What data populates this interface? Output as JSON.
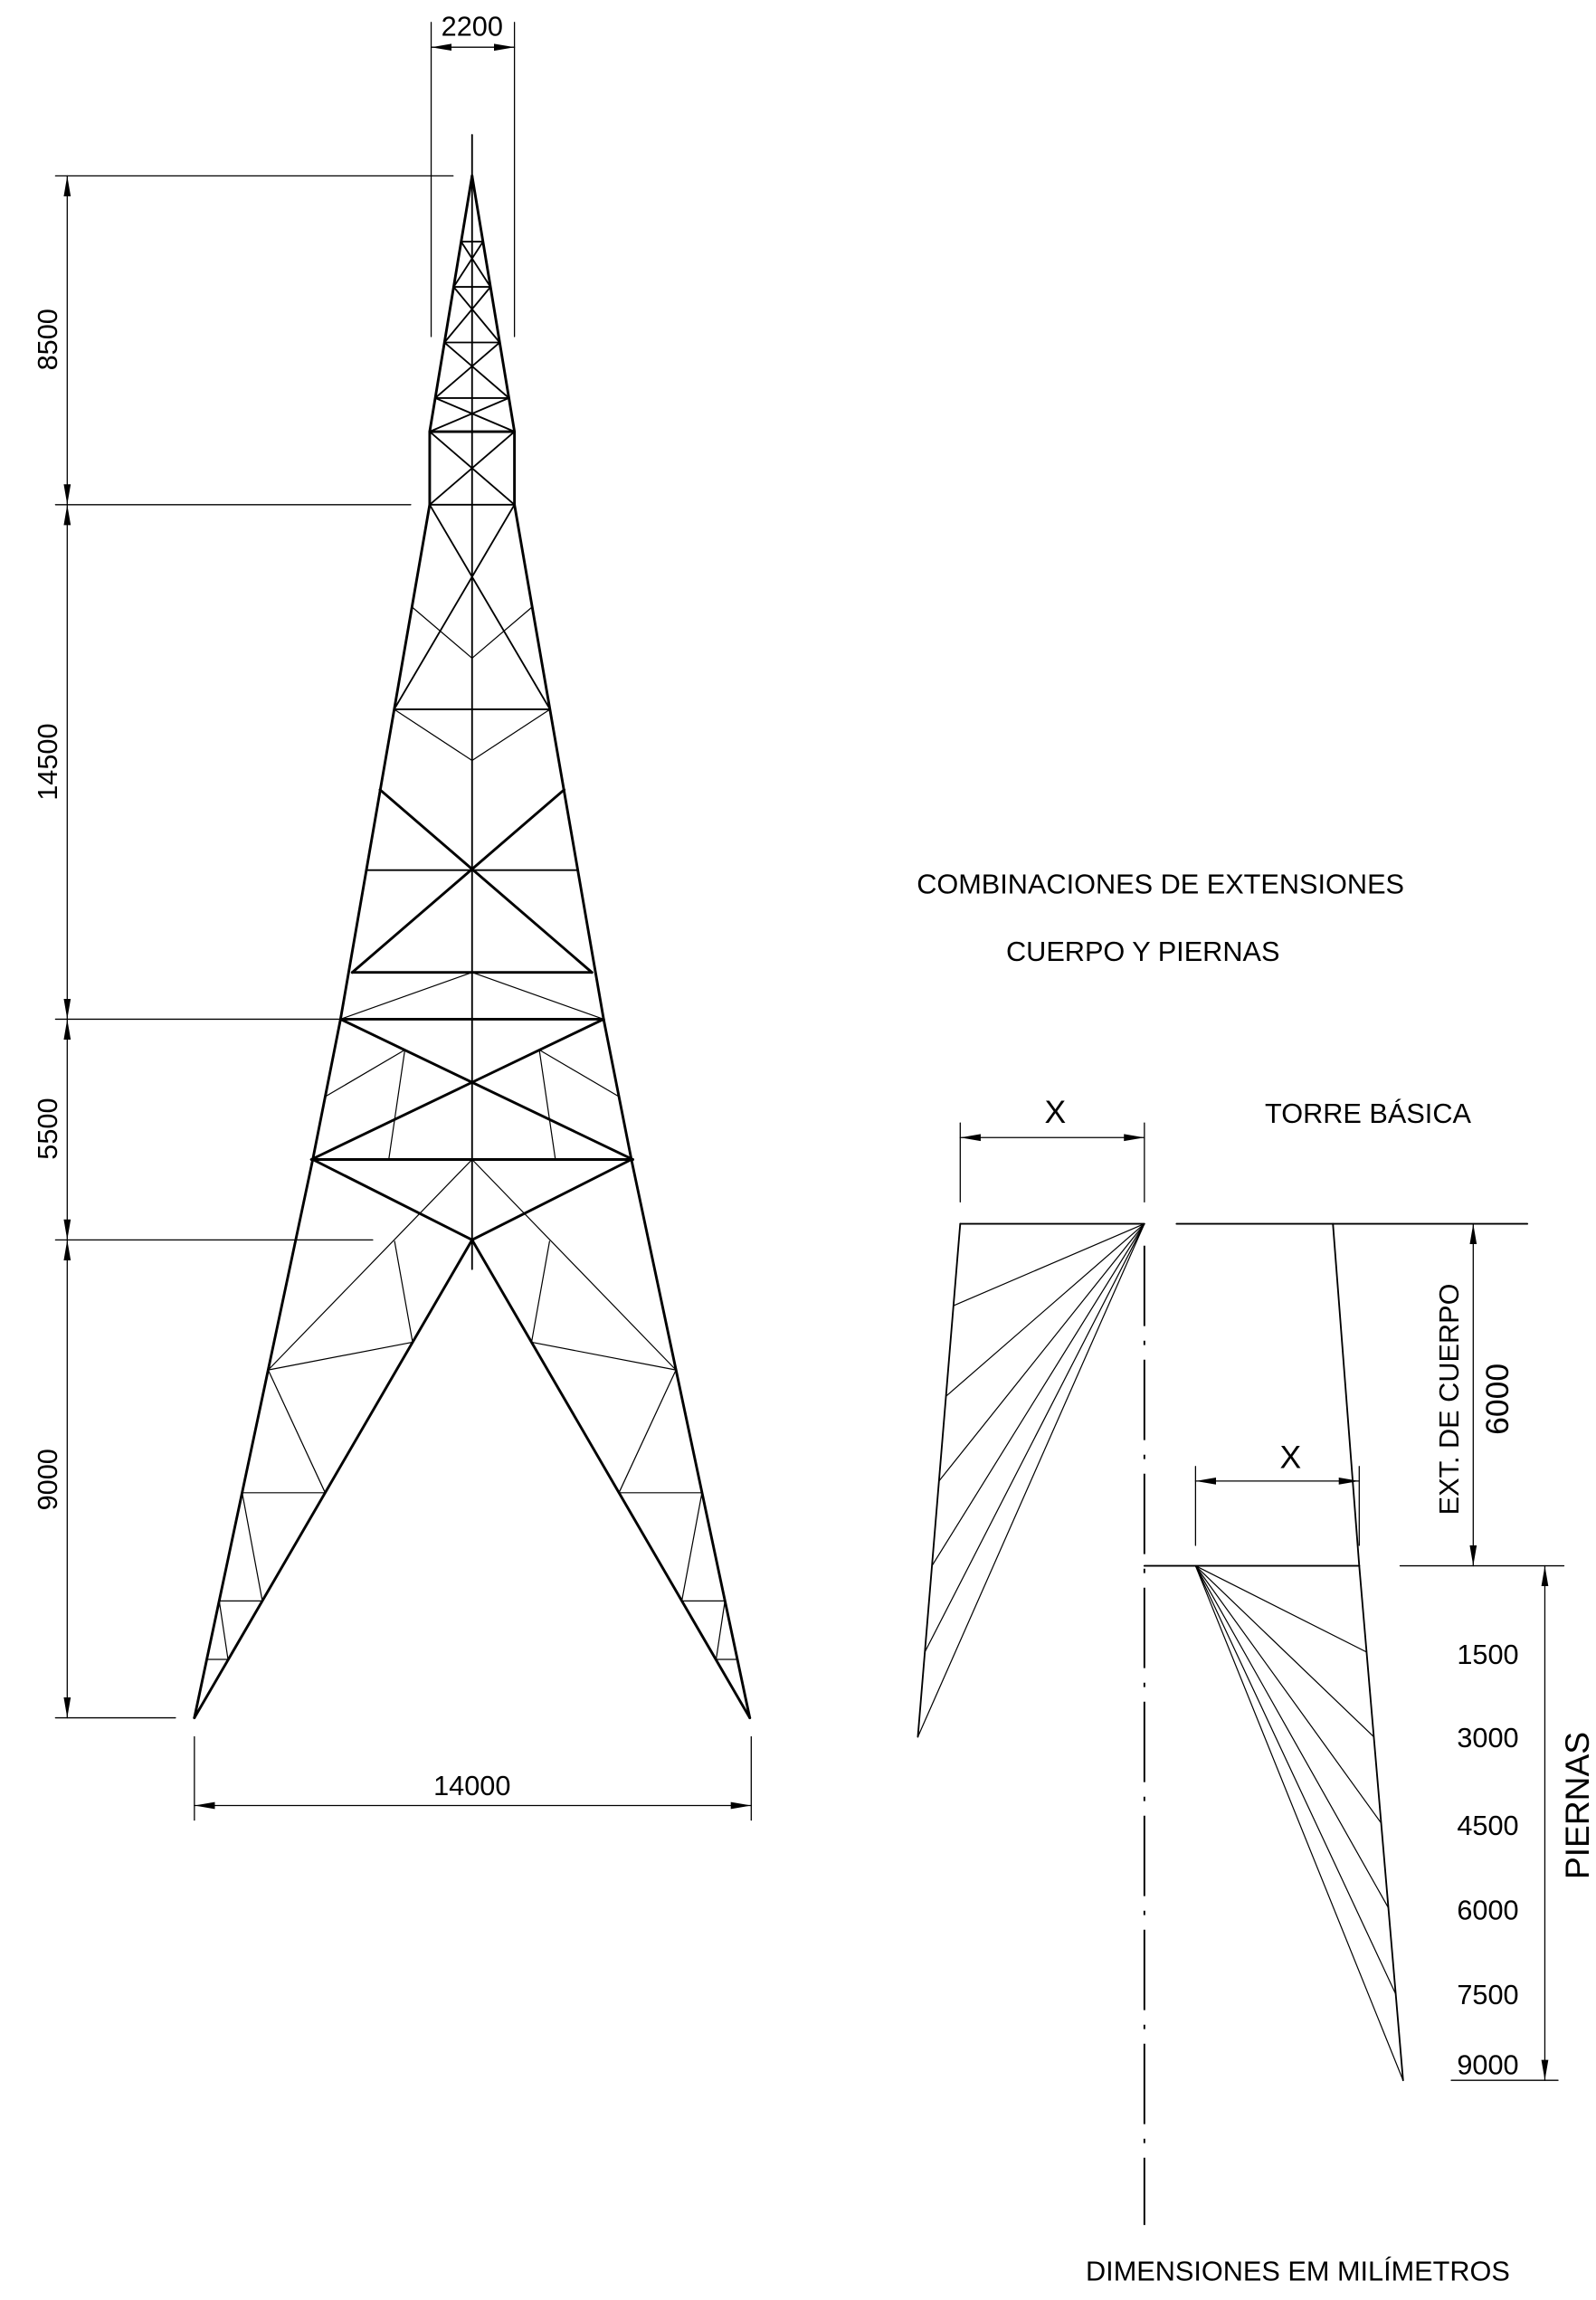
{
  "tower_dimensions": {
    "top_width": "2200",
    "peak_height": "8500",
    "body_height": "14500",
    "waist_height": "5500",
    "leg_height": "9000",
    "base_width": "14000"
  },
  "extension_combinations": {
    "title": "COMBINACIONES DE EXTENSIONES",
    "subtitle": "CUERPO Y PIERNAS",
    "basic_tower_label": "TORRE BÁSICA",
    "width_symbol": "X",
    "body_extension": {
      "label": "EXT. DE CUERPO",
      "value": "6000"
    },
    "legs": {
      "label": "PIERNAS",
      "extensions": [
        "1500",
        "3000",
        "4500",
        "6000",
        "7500",
        "9000"
      ]
    }
  },
  "units_note": "DIMENSIONES EM MILÍMETROS",
  "colors": {
    "line": "#000000",
    "background": "#ffffff"
  }
}
